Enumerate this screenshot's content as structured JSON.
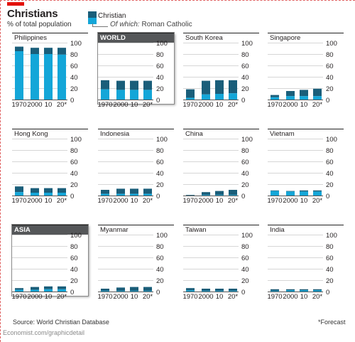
{
  "title": "Christians",
  "subtitle": "% of total population",
  "legend": {
    "christian": "Christian",
    "catholic_prefix": "Of which:",
    "catholic": "Roman Catholic",
    "colors": {
      "christian": "#1a5e7a",
      "catholic": "#14a6d8"
    }
  },
  "source": "Source: World Christian Database",
  "footnote": "*Forecast",
  "credit": "Economist.com/graphicdetail",
  "chart_data": {
    "type": "bar",
    "stacked": true,
    "categories": [
      "1970",
      "2000",
      "10",
      "20*"
    ],
    "ylim": [
      0,
      100
    ],
    "yticks": [
      0,
      20,
      40,
      60,
      80,
      100
    ],
    "grid": true,
    "panels": [
      {
        "name": "Philippines",
        "christian": [
          93,
          91,
          91,
          91
        ],
        "catholic": [
          85,
          80,
          80,
          79
        ]
      },
      {
        "name": "WORLD",
        "highlight": true,
        "christian": [
          34,
          33,
          33,
          33
        ],
        "catholic": [
          18,
          17,
          17,
          17
        ]
      },
      {
        "name": "South Korea",
        "christian": [
          18,
          33,
          34,
          34
        ],
        "catholic": [
          3,
          9,
          10,
          11
        ]
      },
      {
        "name": "Singapore",
        "christian": [
          8,
          15,
          17,
          19
        ],
        "catholic": [
          4,
          6,
          6,
          6
        ]
      },
      {
        "name": "Hong Kong",
        "christian": [
          16,
          13,
          13,
          13
        ],
        "catholic": [
          6,
          5,
          5,
          5
        ]
      },
      {
        "name": "Indonesia",
        "christian": [
          10,
          12,
          12,
          12
        ],
        "catholic": [
          3,
          3,
          3,
          3
        ]
      },
      {
        "name": "China",
        "christian": [
          1,
          6,
          8,
          10
        ],
        "catholic": [
          0,
          1,
          1,
          1
        ]
      },
      {
        "name": "Vietnam",
        "christian": [
          9,
          8,
          9,
          9
        ],
        "catholic": [
          8,
          7,
          7,
          7
        ]
      },
      {
        "name": "ASIA",
        "highlight": true,
        "christian": [
          6,
          8,
          9,
          9
        ],
        "catholic": [
          3,
          3,
          4,
          4
        ]
      },
      {
        "name": "Myanmar",
        "christian": [
          5,
          7,
          8,
          8
        ],
        "catholic": [
          1,
          1,
          1,
          1
        ]
      },
      {
        "name": "Taiwan",
        "christian": [
          6,
          5,
          5,
          5
        ],
        "catholic": [
          2,
          1,
          1,
          1
        ]
      },
      {
        "name": "India",
        "christian": [
          4,
          4,
          4,
          4
        ],
        "catholic": [
          1,
          2,
          2,
          2
        ]
      }
    ]
  }
}
